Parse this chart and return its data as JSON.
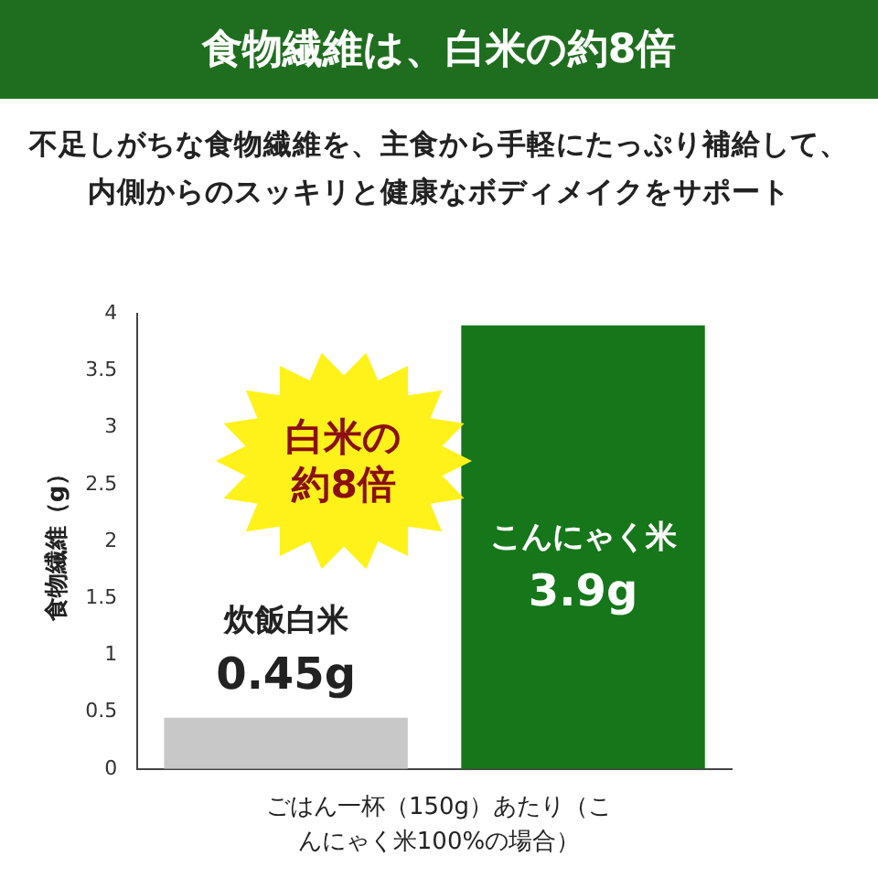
{
  "chart_data": {
    "type": "bar",
    "title": "食物繊維は、白米の約8倍",
    "subtitle": "不足しがちな食物繊維を、主食から手軽にたっぷり補給して、内側からのスッキリと健康なボディメイクをサポート",
    "categories": [
      "炊飯白米",
      "こんにゃく米"
    ],
    "values": [
      0.45,
      3.9
    ],
    "colors": [
      "#c8c8c8",
      "#16761a"
    ],
    "value_labels": [
      "0.45g",
      "3.9g"
    ],
    "ylabel": "食物繊維（g）",
    "xlabel": "ごはん一杯（150g）あたり（こんにゃく米100%の場合）",
    "annotations": [
      "白米の約8倍"
    ],
    "ylim": [
      0,
      4
    ],
    "yticks": [
      0,
      0.5,
      1,
      1.5,
      2,
      2.5,
      3,
      3.5,
      4
    ],
    "tick_labels": "y",
    "grid": false,
    "legend": false
  }
}
